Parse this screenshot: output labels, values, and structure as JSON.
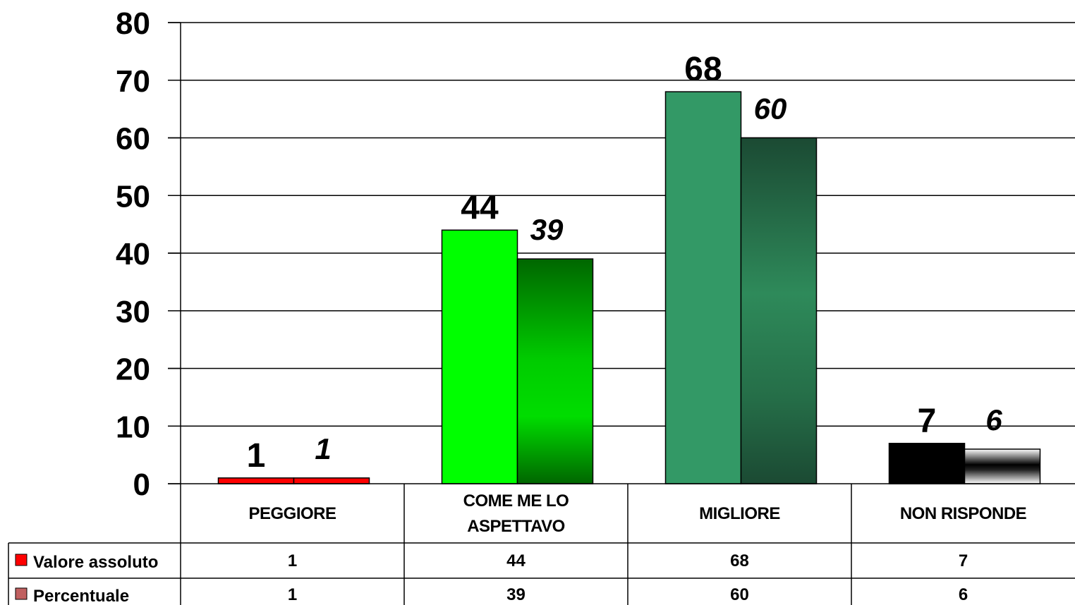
{
  "chart_data": {
    "type": "bar",
    "categories": [
      [
        "PEGGIORE"
      ],
      [
        "COME ME LO",
        "ASPETTAVO"
      ],
      [
        "MIGLIORE"
      ],
      [
        "NON RISPONDE"
      ]
    ],
    "series": [
      {
        "name": "Valore assoluto",
        "values": [
          1,
          44,
          68,
          7
        ]
      },
      {
        "name": "Percentuale",
        "values": [
          1,
          39,
          60,
          6
        ]
      }
    ],
    "ylim": [
      0,
      80
    ],
    "yticks": [
      0,
      10,
      20,
      30,
      40,
      50,
      60,
      70,
      80
    ],
    "grid": true,
    "data_table": true,
    "colors": {
      "peggiore": [
        "#ff0000",
        "#ff0000"
      ],
      "come_me_lo_aspettavo": [
        "#00ff00",
        "#007a00"
      ],
      "migliore": [
        "#339966",
        "#1c4f34"
      ],
      "non_risponde": [
        "#000000",
        "#ffffff"
      ],
      "legend_valore": "#ff0000",
      "legend_percentuale": "#c06060"
    }
  }
}
